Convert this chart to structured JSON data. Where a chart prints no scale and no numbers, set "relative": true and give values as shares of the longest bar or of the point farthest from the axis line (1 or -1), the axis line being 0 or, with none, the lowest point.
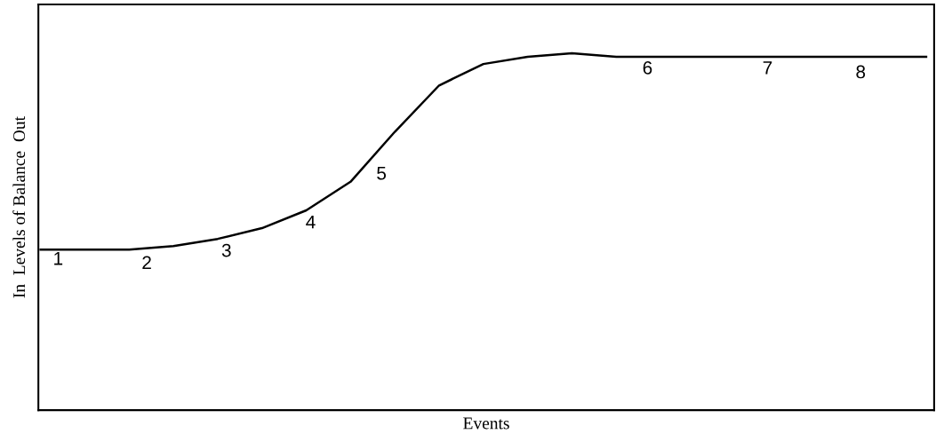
{
  "chart_data": {
    "type": "line",
    "relative": true,
    "xlabel": "Events",
    "ylabel": "In  Levels of Balance  Out",
    "categories": [
      null,
      null,
      null,
      null,
      null,
      null,
      null,
      null,
      null,
      null,
      null,
      null,
      null,
      null,
      null,
      null,
      null,
      null,
      null,
      null,
      null
    ],
    "series": [
      {
        "color": "#000000",
        "values": [
          0.45,
          0.45,
          0.45,
          0.46,
          0.48,
          0.51,
          0.56,
          0.64,
          0.78,
          0.91,
          0.97,
          0.99,
          1,
          0.99,
          0.99,
          0.99,
          0.99,
          0.99,
          0.99,
          0.99,
          0.99
        ]
      }
    ],
    "annotations": [
      "1",
      "2",
      "3",
      "4",
      "5",
      "6",
      "7",
      "8"
    ],
    "grid": false,
    "legend": false,
    "marker": "none",
    "line_style": "solid"
  }
}
